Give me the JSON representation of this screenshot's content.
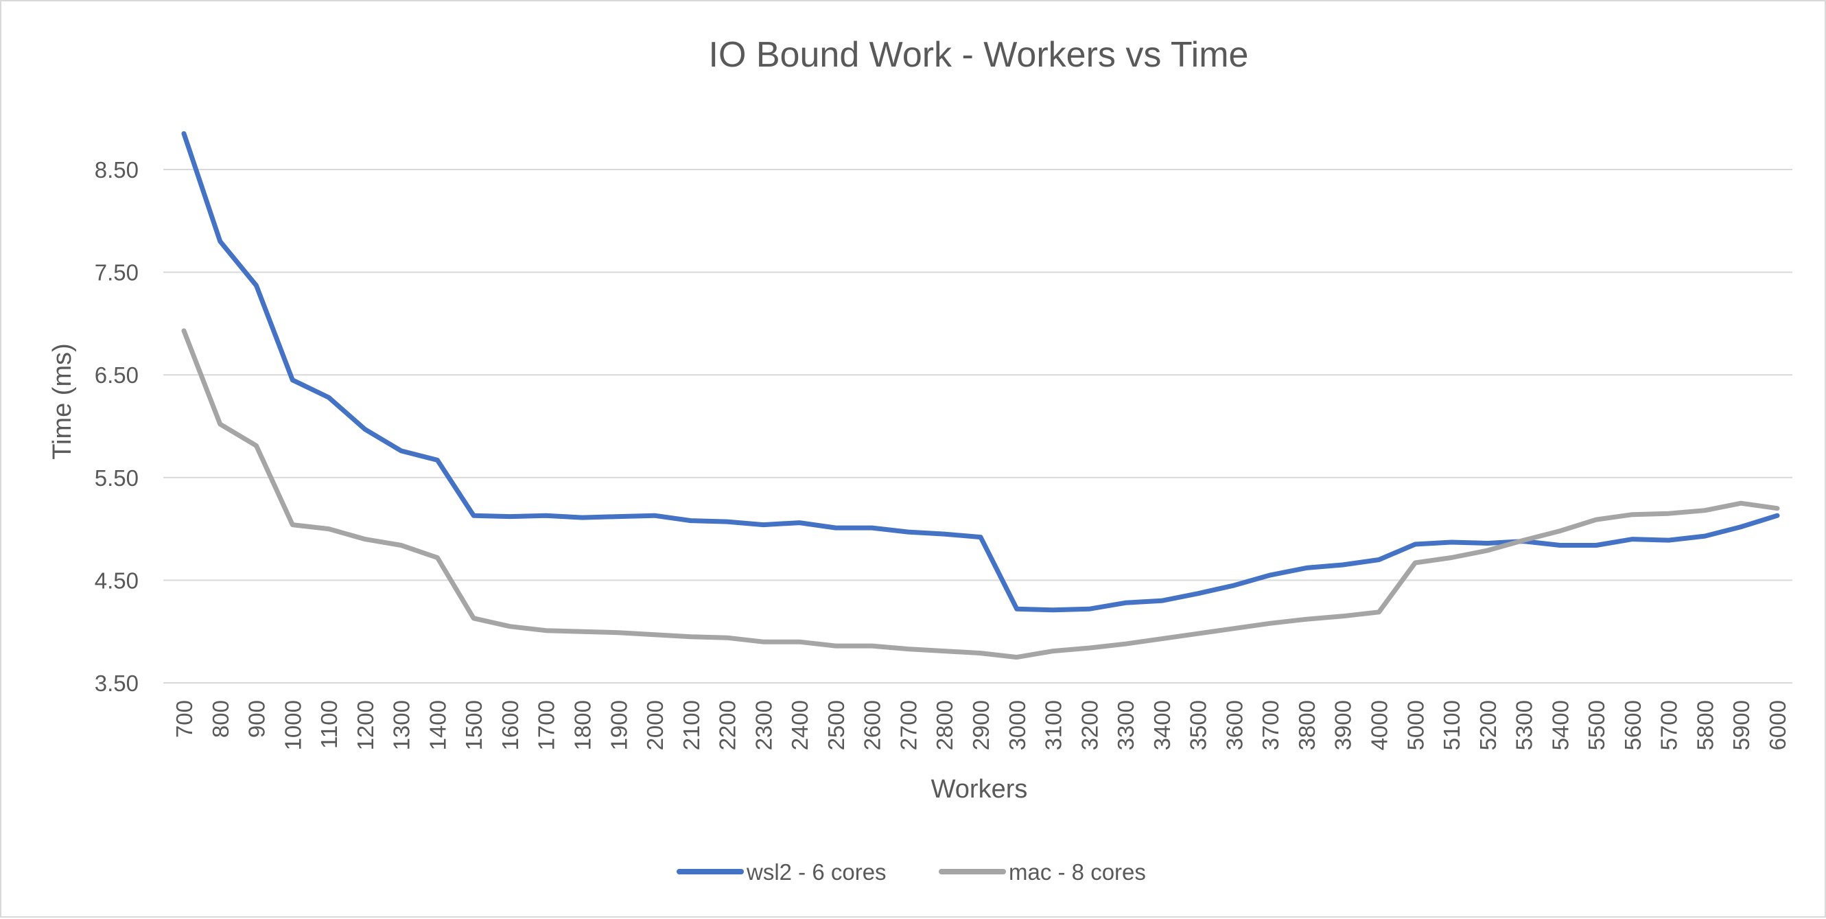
{
  "chart_data": {
    "type": "line",
    "title": "IO Bound Work - Workers vs Time",
    "xlabel": "Workers",
    "ylabel": "Time (ms)",
    "ylim": [
      3.5,
      9.0
    ],
    "yticks": [
      "3.50",
      "4.50",
      "5.50",
      "6.50",
      "7.50",
      "8.50"
    ],
    "ytick_values": [
      3.5,
      4.5,
      5.5,
      6.5,
      7.5,
      8.5
    ],
    "grid": "horizontal",
    "legend": "bottom",
    "categories": [
      "700",
      "800",
      "900",
      "1000",
      "1100",
      "1200",
      "1300",
      "1400",
      "1500",
      "1600",
      "1700",
      "1800",
      "1900",
      "2000",
      "2100",
      "2200",
      "2300",
      "2400",
      "2500",
      "2600",
      "2700",
      "2800",
      "2900",
      "3000",
      "3100",
      "3200",
      "3300",
      "3400",
      "3500",
      "3600",
      "3700",
      "3800",
      "3900",
      "4000",
      "5000",
      "5100",
      "5200",
      "5300",
      "5400",
      "5500",
      "5600",
      "5700",
      "5800",
      "5900",
      "6000"
    ],
    "series": [
      {
        "name": "wsl2 - 6 cores",
        "color": "#4472c4",
        "values": [
          8.85,
          7.8,
          7.37,
          6.45,
          6.28,
          5.97,
          5.76,
          5.67,
          5.13,
          5.12,
          5.13,
          5.11,
          5.12,
          5.13,
          5.08,
          5.07,
          5.04,
          5.06,
          5.01,
          5.01,
          4.97,
          4.95,
          4.92,
          4.22,
          4.21,
          4.22,
          4.28,
          4.3,
          4.37,
          4.45,
          4.55,
          4.62,
          4.65,
          4.7,
          4.85,
          4.87,
          4.86,
          4.88,
          4.84,
          4.84,
          4.9,
          4.89,
          4.93,
          5.02,
          5.13
        ]
      },
      {
        "name": "mac - 8 cores",
        "color": "#a5a5a5",
        "values": [
          6.93,
          6.02,
          5.81,
          5.04,
          5.0,
          4.9,
          4.84,
          4.72,
          4.13,
          4.05,
          4.01,
          4.0,
          3.99,
          3.97,
          3.95,
          3.94,
          3.9,
          3.9,
          3.86,
          3.86,
          3.83,
          3.81,
          3.79,
          3.75,
          3.81,
          3.84,
          3.88,
          3.93,
          3.98,
          4.03,
          4.08,
          4.12,
          4.15,
          4.19,
          4.67,
          4.72,
          4.79,
          4.89,
          4.98,
          5.09,
          5.14,
          5.15,
          5.18,
          5.25,
          5.2
        ]
      }
    ]
  }
}
